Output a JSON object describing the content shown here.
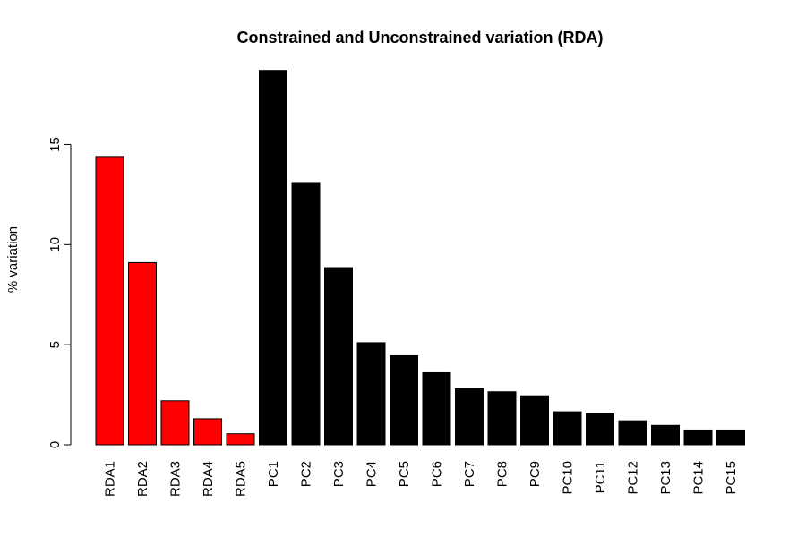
{
  "chart_data": {
    "type": "bar",
    "title": "Constrained and Unconstrained variation (RDA)",
    "xlabel": "",
    "ylabel": "% variation",
    "ylim": [
      0,
      18.7
    ],
    "yticks": [
      0,
      5,
      10,
      15
    ],
    "categories": [
      "RDA1",
      "RDA2",
      "RDA3",
      "RDA4",
      "RDA5",
      "PC1",
      "PC2",
      "PC3",
      "PC4",
      "PC5",
      "PC6",
      "PC7",
      "PC8",
      "PC9",
      "PC10",
      "PC11",
      "PC12",
      "PC13",
      "PC14",
      "PC15"
    ],
    "values": [
      14.4,
      9.1,
      2.2,
      1.3,
      0.55,
      18.7,
      13.1,
      8.85,
      5.1,
      4.45,
      3.6,
      2.8,
      2.65,
      2.45,
      1.65,
      1.55,
      1.2,
      0.97,
      0.74,
      0.74
    ],
    "colors": [
      "#ff0000",
      "#ff0000",
      "#ff0000",
      "#ff0000",
      "#ff0000",
      "#000000",
      "#000000",
      "#000000",
      "#000000",
      "#000000",
      "#000000",
      "#000000",
      "#000000",
      "#000000",
      "#000000",
      "#000000",
      "#000000",
      "#000000",
      "#000000",
      "#000000"
    ],
    "grid": false,
    "legend": "none"
  }
}
